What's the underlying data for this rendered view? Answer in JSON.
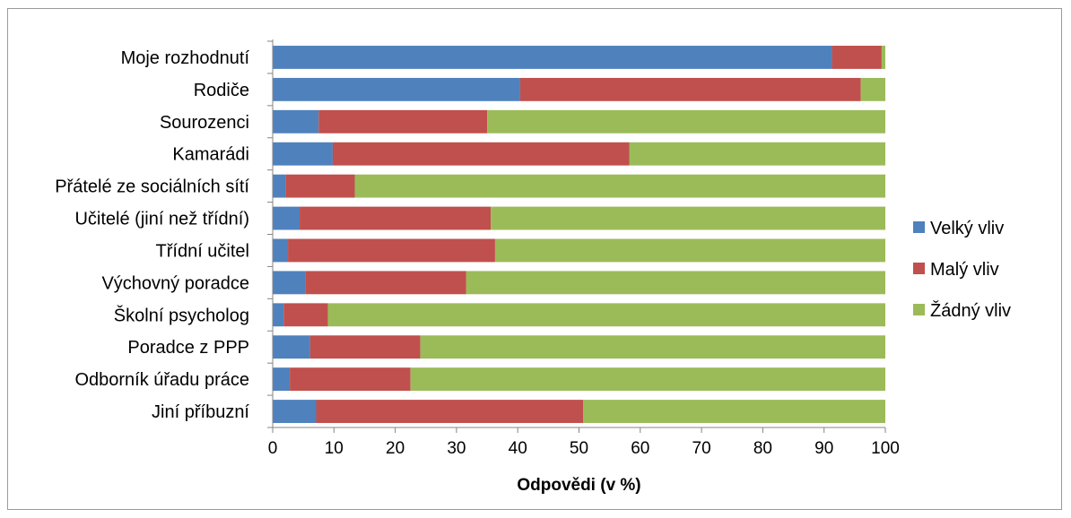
{
  "chart_data": {
    "type": "bar",
    "orientation": "horizontal",
    "stacked": true,
    "categories": [
      "Moje rozhodnutí",
      "Rodiče",
      "Sourozenci",
      "Kamarádi",
      "Přátelé ze sociálních sítí",
      "Učitelé (jiní než třídní)",
      "Třídní učitel",
      "Výchovný poradce",
      "Školní psycholog",
      "Poradce z PPP",
      "Odborník úřadu práce",
      "Jiní příbuzní"
    ],
    "series": [
      {
        "name": "Velký vliv",
        "color": "#4f81bd",
        "values": [
          91.3,
          40.4,
          7.5,
          9.8,
          2.1,
          4.4,
          2.5,
          5.3,
          1.8,
          6.1,
          2.8,
          7.1
        ]
      },
      {
        "name": "Malý vliv",
        "color": "#c0504d",
        "values": [
          8.1,
          55.6,
          27.5,
          48.4,
          11.3,
          31.2,
          33.8,
          26.3,
          7.2,
          18.0,
          19.7,
          43.6
        ]
      },
      {
        "name": "Žádný vliv",
        "color": "#9bbb59",
        "values": [
          0.6,
          4.0,
          65.0,
          41.8,
          86.6,
          64.4,
          63.7,
          68.4,
          91.0,
          75.9,
          77.5,
          49.3
        ]
      }
    ],
    "xlabel": "Odpovědi (v %)",
    "ylabel": "",
    "xlim": [
      0,
      100
    ],
    "x_ticks": [
      "0",
      "10",
      "20",
      "30",
      "40",
      "50",
      "60",
      "70",
      "80",
      "90",
      "100"
    ],
    "grid": false,
    "legend_position": "right"
  }
}
